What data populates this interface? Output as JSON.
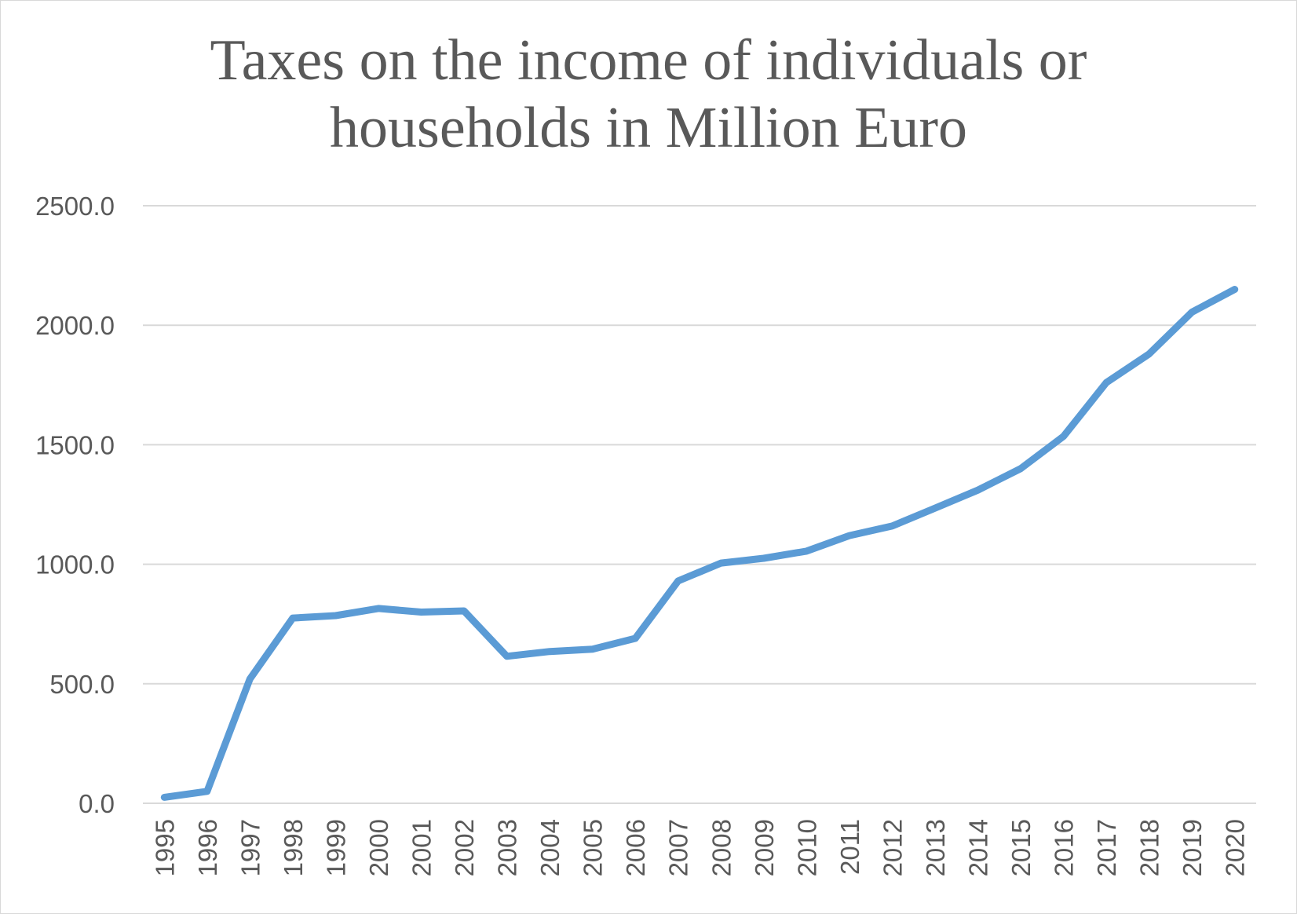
{
  "chart_data": {
    "type": "line",
    "title_lines": [
      "Taxes on the income of individuals or",
      "households in Million Euro"
    ],
    "xlabel": "",
    "ylabel": "",
    "categories": [
      "1995",
      "1996",
      "1997",
      "1998",
      "1999",
      "2000",
      "2001",
      "2002",
      "2003",
      "2004",
      "2005",
      "2006",
      "2007",
      "2008",
      "2009",
      "2010",
      "2011",
      "2012",
      "2013",
      "2014",
      "2015",
      "2016",
      "2017",
      "2018",
      "2019",
      "2020"
    ],
    "series": [
      {
        "values": [
          25,
          50,
          520,
          775,
          785,
          815,
          800,
          805,
          615,
          635,
          645,
          690,
          930,
          1005,
          1025,
          1055,
          1120,
          1160,
          1235,
          1310,
          1400,
          1535,
          1760,
          1880,
          2055,
          2150
        ]
      }
    ],
    "ylim": [
      0,
      2500
    ],
    "yticks": [
      "0.0",
      "500.0",
      "1000.0",
      "1500.0",
      "2000.0",
      "2500.0"
    ],
    "grid": true,
    "legend": "none",
    "colors": {
      "line": "#5b9bd5",
      "grid": "#d9d9d9",
      "text": "#595959"
    }
  }
}
